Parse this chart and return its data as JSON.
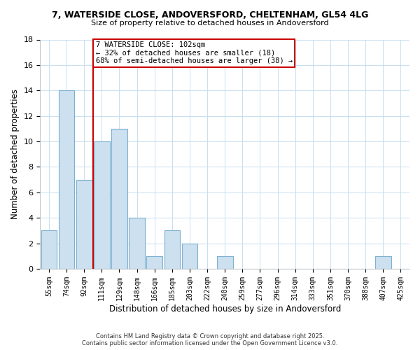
{
  "title": "7, WATERSIDE CLOSE, ANDOVERSFORD, CHELTENHAM, GL54 4LG",
  "subtitle": "Size of property relative to detached houses in Andoversford",
  "xlabel": "Distribution of detached houses by size in Andoversford",
  "ylabel": "Number of detached properties",
  "bin_labels": [
    "55sqm",
    "74sqm",
    "92sqm",
    "111sqm",
    "129sqm",
    "148sqm",
    "166sqm",
    "185sqm",
    "203sqm",
    "222sqm",
    "240sqm",
    "259sqm",
    "277sqm",
    "296sqm",
    "314sqm",
    "333sqm",
    "351sqm",
    "370sqm",
    "388sqm",
    "407sqm",
    "425sqm"
  ],
  "bin_values": [
    3,
    14,
    7,
    10,
    11,
    4,
    1,
    3,
    2,
    0,
    1,
    0,
    0,
    0,
    0,
    0,
    0,
    0,
    0,
    1,
    0
  ],
  "bar_color": "#cce0ef",
  "bar_edge_color": "#7ab0d0",
  "vline_color": "#cc0000",
  "annotation_text": "7 WATERSIDE CLOSE: 102sqm\n← 32% of detached houses are smaller (18)\n68% of semi-detached houses are larger (38) →",
  "annotation_box_edge": "#cc0000",
  "ylim": [
    0,
    18
  ],
  "yticks": [
    0,
    2,
    4,
    6,
    8,
    10,
    12,
    14,
    16,
    18
  ],
  "background_color": "#ffffff",
  "grid_color": "#c8dff0",
  "title_fontsize": 9,
  "subtitle_fontsize": 8,
  "footer_line1": "Contains HM Land Registry data © Crown copyright and database right 2025.",
  "footer_line2": "Contains public sector information licensed under the Open Government Licence v3.0."
}
